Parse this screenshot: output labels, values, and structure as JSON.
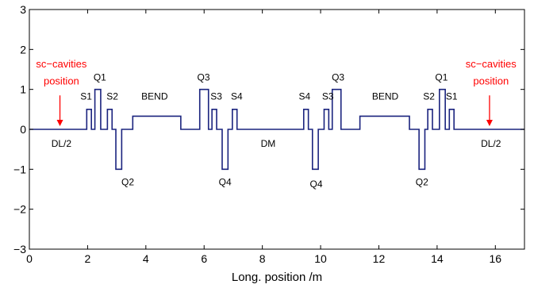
{
  "chart_data": {
    "type": "line",
    "xlabel": "Long. position /m",
    "ylabel": "",
    "xlim": [
      0,
      17
    ],
    "ylim": [
      -3,
      3
    ],
    "x_ticks": [
      0,
      2,
      4,
      6,
      8,
      10,
      12,
      14,
      16
    ],
    "y_ticks": [
      -3,
      -2,
      -1,
      0,
      1,
      2,
      3
    ],
    "grid": false,
    "line_color": "#1a237e",
    "annotation_color": "#ff0000",
    "elements": [
      {
        "name": "S1",
        "x0": 1.97,
        "x1": 2.13,
        "strength": 0.5,
        "label_x": 1.95,
        "label_y": 0.75
      },
      {
        "name": "Q1",
        "x0": 2.25,
        "x1": 2.45,
        "strength": 1.0,
        "label_x": 2.42,
        "label_y": 1.22
      },
      {
        "name": "S2",
        "x0": 2.68,
        "x1": 2.84,
        "strength": 0.5,
        "label_x": 2.85,
        "label_y": 0.75
      },
      {
        "name": "Q2",
        "x0": 2.97,
        "x1": 3.17,
        "strength": -1.0,
        "label_x": 3.38,
        "label_y": -1.4
      },
      {
        "name": "BEND",
        "x0": 3.55,
        "x1": 5.2,
        "strength": 0.33,
        "label_x": 4.3,
        "label_y": 0.75
      },
      {
        "name": "Q3",
        "x0": 5.85,
        "x1": 6.15,
        "strength": 1.0,
        "label_x": 5.98,
        "label_y": 1.22
      },
      {
        "name": "S3",
        "x0": 6.27,
        "x1": 6.43,
        "strength": 0.5,
        "label_x": 6.42,
        "label_y": 0.75
      },
      {
        "name": "Q4",
        "x0": 6.62,
        "x1": 6.82,
        "strength": -1.0,
        "label_x": 6.72,
        "label_y": -1.4
      },
      {
        "name": "S4",
        "x0": 6.97,
        "x1": 7.13,
        "strength": 0.5,
        "label_x": 7.12,
        "label_y": 0.75
      },
      {
        "name": "S4",
        "x0": 9.42,
        "x1": 9.58,
        "strength": 0.5,
        "label_x": 9.45,
        "label_y": 0.75
      },
      {
        "name": "Q4",
        "x0": 9.72,
        "x1": 9.92,
        "strength": -1.0,
        "label_x": 9.85,
        "label_y": -1.45
      },
      {
        "name": "S3",
        "x0": 10.12,
        "x1": 10.28,
        "strength": 0.5,
        "label_x": 10.25,
        "label_y": 0.75
      },
      {
        "name": "Q3",
        "x0": 10.4,
        "x1": 10.7,
        "strength": 1.0,
        "label_x": 10.6,
        "label_y": 1.22
      },
      {
        "name": "BEND",
        "x0": 11.35,
        "x1": 13.05,
        "strength": 0.33,
        "label_x": 12.22,
        "label_y": 0.75
      },
      {
        "name": "Q2",
        "x0": 13.38,
        "x1": 13.58,
        "strength": -1.0,
        "label_x": 13.48,
        "label_y": -1.4
      },
      {
        "name": "S2",
        "x0": 13.68,
        "x1": 13.84,
        "strength": 0.5,
        "label_x": 13.72,
        "label_y": 0.75
      },
      {
        "name": "Q1",
        "x0": 14.08,
        "x1": 14.28,
        "strength": 1.0,
        "label_x": 14.15,
        "label_y": 1.22
      },
      {
        "name": "S1",
        "x0": 14.42,
        "x1": 14.58,
        "strength": 0.5,
        "label_x": 14.5,
        "label_y": 0.75
      }
    ],
    "text_labels": [
      {
        "text": "DL/2",
        "x": 1.1,
        "y": -0.2
      },
      {
        "text": "DM",
        "x": 8.2,
        "y": -0.2
      },
      {
        "text": "DL/2",
        "x": 15.85,
        "y": -0.2
      }
    ],
    "annotations": [
      {
        "line1": "sc−cavities",
        "line2": "position",
        "text_x": 1.1,
        "text_y1": 1.65,
        "text_y2": 1.22,
        "arrow_x": 1.05,
        "arrow_from": 0.85,
        "arrow_to": 0.08
      },
      {
        "line1": "sc−cavities",
        "line2": "position",
        "text_x": 15.85,
        "text_y1": 1.65,
        "text_y2": 1.22,
        "arrow_x": 15.8,
        "arrow_from": 0.85,
        "arrow_to": 0.08
      }
    ]
  }
}
